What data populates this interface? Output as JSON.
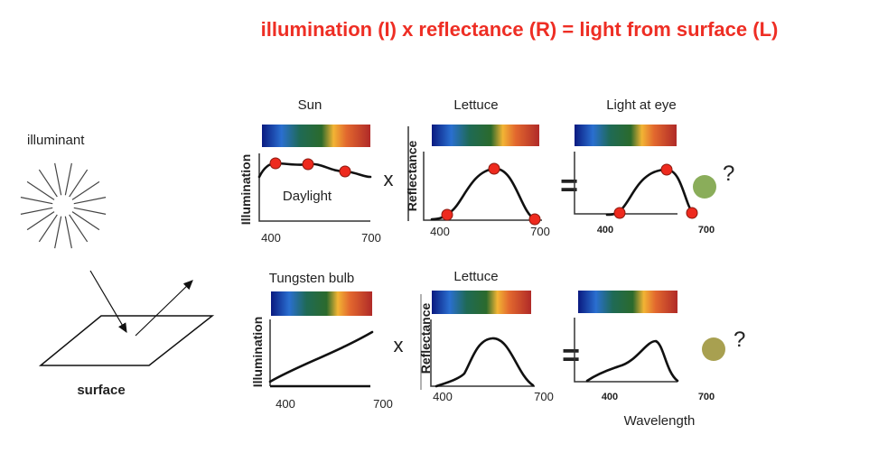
{
  "title": "illumination (I)  x  reflectance (R) = light from surface (L)",
  "scene": {
    "illuminant_label": "illuminant",
    "surface_label": "surface"
  },
  "operators": {
    "times": "x",
    "equals": "=",
    "question": "?"
  },
  "colors": {
    "title": "#ee2e24",
    "dot": "#ee2a1e",
    "daylight_result": "#8aad5a",
    "tungsten_result": "#a8a050",
    "spectrum": [
      "#0a1a80",
      "#2a6fd0",
      "#1f6a55",
      "#2b6a2c",
      "#f2b434",
      "#e2682e",
      "#b02a28"
    ]
  },
  "row1": {
    "illuminant": {
      "label": "Sun",
      "ylabel": "Illumination",
      "curve_label": "Daylight",
      "xmin": "400",
      "xmax": "700"
    },
    "reflectance": {
      "label": "Lettuce",
      "ylabel": "Reflectance",
      "xmin": "400",
      "xmax": "700"
    },
    "result": {
      "label": "Light at eye",
      "xmin": "400",
      "xmax": "700"
    }
  },
  "row2": {
    "illuminant": {
      "label": "Tungsten bulb",
      "ylabel": "Illumination",
      "xmin": "400",
      "xmax": "700"
    },
    "reflectance": {
      "label": "Lettuce",
      "ylabel": "Reflectance",
      "xmin": "400",
      "xmax": "700"
    },
    "result": {
      "xlabel": "Wavelength",
      "xmin": "400",
      "xmax": "700"
    }
  }
}
